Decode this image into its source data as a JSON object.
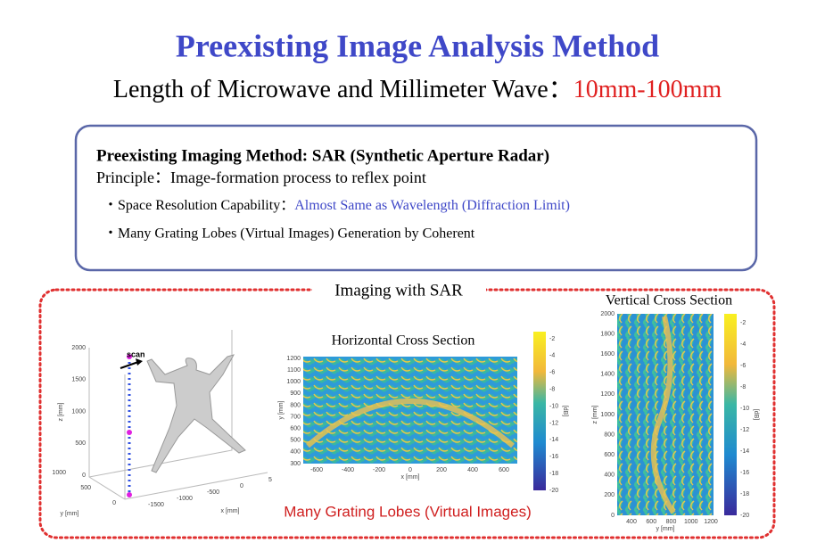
{
  "header": {
    "title": "Preexisting Image Analysis Method",
    "subtitle": "Length of Microwave and Millimeter Wave：",
    "subtitle_range": "10mm-100mm"
  },
  "box": {
    "heading": "Preexisting Imaging Method: SAR (Synthetic Aperture Radar)",
    "principle": "Principle：Image-formation process to reflex point",
    "bullet1": "・Space Resolution Capability：",
    "bullet1_highlight": "Almost Same as Wavelength (Diffraction Limit)",
    "bullet2": "・Many Grating Lobes (Virtual Images) Generation by Coherent"
  },
  "panel": {
    "label": "Imaging with SAR",
    "caption": "Many Grating Lobes (Virtual Images)"
  },
  "figure_3d": {
    "scan": "scan",
    "zticks": [
      0,
      500,
      1000,
      1500,
      2000
    ],
    "zlabel": "z [mm]",
    "yticks": [
      0,
      500,
      1000
    ],
    "ylabel": "y [mm]",
    "xticks": [
      -1500,
      -1000,
      -500,
      0,
      5
    ],
    "xlabel": "x [mm]"
  },
  "figure_h": {
    "title": "Horizontal Cross Section",
    "xticks": [
      -600,
      -400,
      -200,
      0,
      200,
      400,
      600
    ],
    "xlabel": "x [mm]",
    "yticks": [
      300,
      400,
      500,
      600,
      700,
      800,
      900,
      1000,
      1100,
      1200
    ],
    "ylabel": "y [mm]",
    "cticks": [
      -2,
      -4,
      -6,
      -8,
      -10,
      -12,
      -14,
      -16,
      -18,
      -20
    ],
    "clabel": "[dB]"
  },
  "figure_v": {
    "title": "Vertical Cross Section",
    "xticks": [
      400,
      600,
      800,
      1000,
      1200
    ],
    "xlabel": "y [mm]",
    "yticks": [
      0,
      200,
      400,
      600,
      800,
      1000,
      1200,
      1400,
      1600,
      1800,
      2000
    ],
    "ylabel": "z [mm]",
    "cticks": [
      -2,
      -4,
      -6,
      -8,
      -10,
      -12,
      -14,
      -16,
      -18,
      -20
    ],
    "clabel": "[dB]"
  }
}
